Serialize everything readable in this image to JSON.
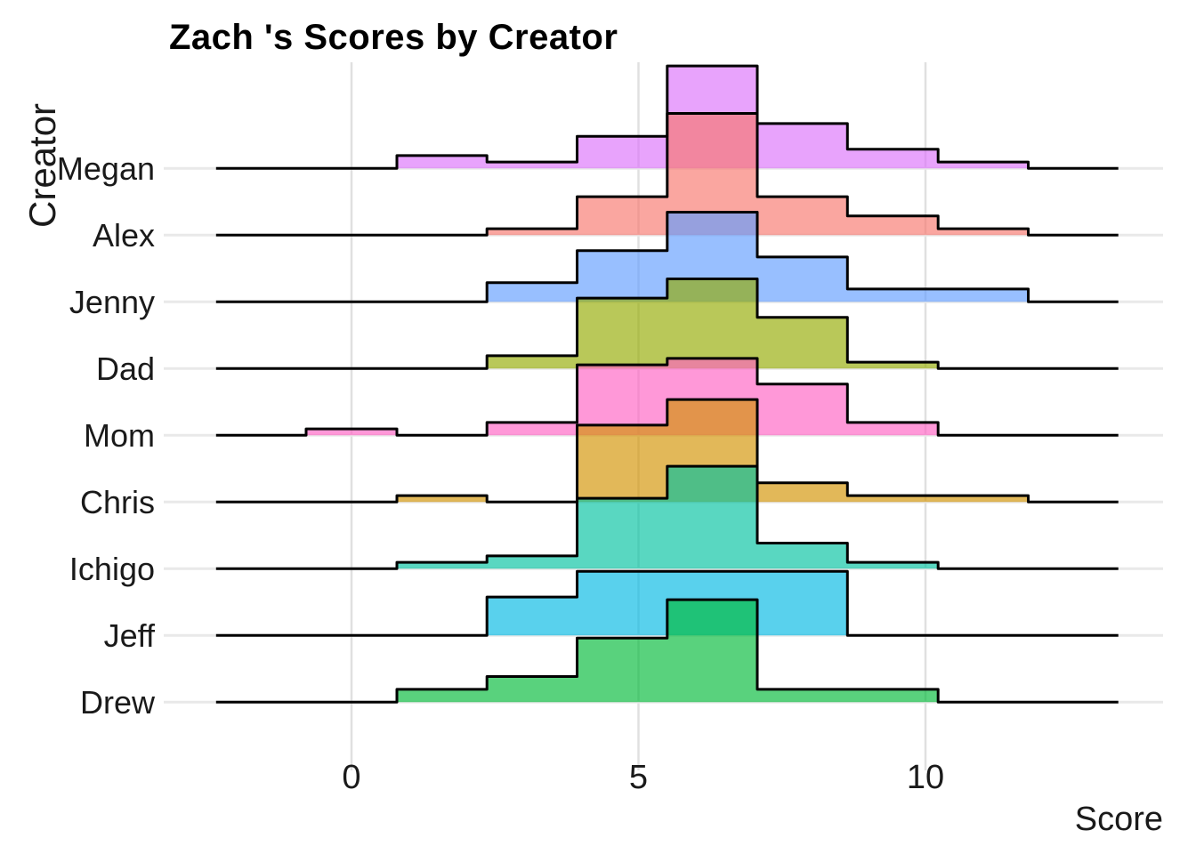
{
  "page": {
    "background_color": "#ffffff",
    "text_color": "#1a1a1a",
    "gridline_color": "#e0e0e0",
    "row_axis_color": "#e9e9e9",
    "outline_color": "#000000"
  },
  "chart_data": {
    "type": "ridgeline_step_histogram",
    "title": "Zach 's Scores by Creator",
    "xlabel": "Score",
    "ylabel": "Creator",
    "x_ticks": [
      0,
      5,
      10
    ],
    "x_range": [
      -2.4,
      13.6
    ],
    "grid": "vertical major gridlines only, no minor",
    "legend": "none",
    "fill_opacity": 0.65,
    "bin_edges": [
      -2.36,
      -0.79,
      0.79,
      2.36,
      3.93,
      5.5,
      7.07,
      8.64,
      10.22,
      11.79,
      13.36
    ],
    "values_are": "histogram counts per bin (bar height units)",
    "creators_top_to_bottom": [
      "Megan",
      "Alex",
      "Jenny",
      "Dad",
      "Mom",
      "Chris",
      "Ichigo",
      "Jeff",
      "Drew"
    ],
    "creators": [
      {
        "name": "Megan",
        "color": "#DB72FB",
        "counts": [
          0,
          0,
          2,
          1,
          5,
          16,
          7,
          3,
          1,
          0
        ]
      },
      {
        "name": "Alex",
        "color": "#F8766D",
        "counts": [
          0,
          0,
          0,
          1,
          6,
          19,
          6,
          3,
          1,
          0
        ]
      },
      {
        "name": "Jenny",
        "color": "#619CFF",
        "counts": [
          0,
          0,
          0,
          3,
          8,
          14,
          7,
          2,
          2,
          0
        ]
      },
      {
        "name": "Dad",
        "color": "#93AA00",
        "counts": [
          0,
          0,
          0,
          2,
          11,
          14,
          8,
          1,
          0,
          0
        ]
      },
      {
        "name": "Mom",
        "color": "#FF61C3",
        "counts": [
          0,
          1,
          0,
          2,
          11,
          12,
          8,
          2,
          0,
          0
        ]
      },
      {
        "name": "Chris",
        "color": "#D39200",
        "counts": [
          0,
          0,
          1,
          0,
          12,
          16,
          3,
          1,
          1,
          0
        ]
      },
      {
        "name": "Ichigo",
        "color": "#00C19F",
        "counts": [
          0,
          0,
          1,
          2,
          11,
          16,
          4,
          1,
          0,
          0
        ]
      },
      {
        "name": "Jeff",
        "color": "#00B9E3",
        "counts": [
          0,
          0,
          0,
          6,
          10,
          10,
          10,
          0,
          0,
          0
        ]
      },
      {
        "name": "Drew",
        "color": "#00BA38",
        "counts": [
          0,
          0,
          2,
          4,
          10,
          16,
          2,
          2,
          0,
          0
        ]
      }
    ]
  }
}
